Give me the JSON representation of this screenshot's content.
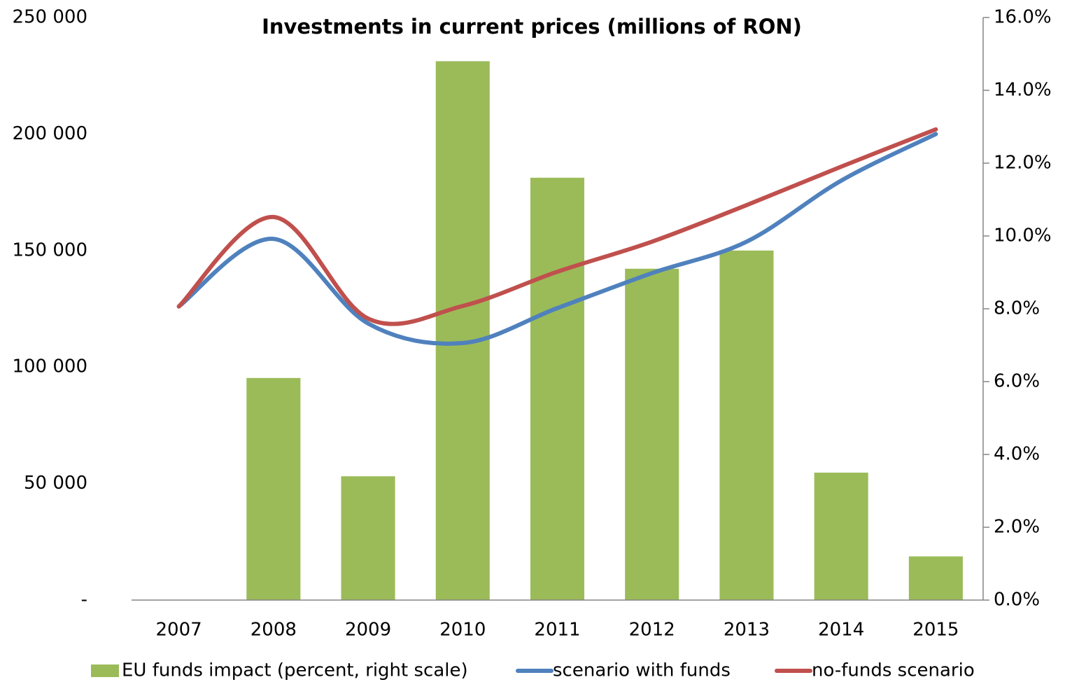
{
  "chart_data": {
    "type": "combo",
    "title": "Investments in current prices (millions of RON)",
    "categories": [
      "2007",
      "2008",
      "2009",
      "2010",
      "2011",
      "2012",
      "2013",
      "2014",
      "2015"
    ],
    "series": [
      {
        "name": "EU funds impact (percent, right scale)",
        "type": "bar",
        "axis": "y2",
        "color": "#9bbb59",
        "values": [
          0,
          6.1,
          3.4,
          14.8,
          11.6,
          9.1,
          9.6,
          3.5,
          1.2
        ]
      },
      {
        "name": "scenario with funds",
        "type": "line",
        "axis": "y",
        "color": "#4f81bd",
        "values": [
          126000,
          155000,
          118700,
          110300,
          125300,
          140300,
          153800,
          180000,
          200000
        ]
      },
      {
        "name": "no-funds scenario",
        "type": "line",
        "axis": "y",
        "color": "#c0504d",
        "values": [
          126000,
          164400,
          120800,
          126200,
          140900,
          153800,
          169500,
          186000,
          202000
        ]
      }
    ],
    "smooth": true,
    "ylim": [
      0,
      250000
    ],
    "yticks": [
      {
        "value": 0,
        "label": "-"
      },
      {
        "value": 50000,
        "label": "50 000"
      },
      {
        "value": 100000,
        "label": "100 000"
      },
      {
        "value": 150000,
        "label": "150 000"
      },
      {
        "value": 200000,
        "label": "200 000"
      },
      {
        "value": 250000,
        "label": "250 000"
      }
    ],
    "y2lim": [
      0,
      16
    ],
    "y2ticks": [
      {
        "value": 0,
        "label": "0.0%"
      },
      {
        "value": 2,
        "label": "2.0%"
      },
      {
        "value": 4,
        "label": "4.0%"
      },
      {
        "value": 6,
        "label": "6.0%"
      },
      {
        "value": 8,
        "label": "8.0%"
      },
      {
        "value": 10,
        "label": "10.0%"
      },
      {
        "value": 12,
        "label": "12.0%"
      },
      {
        "value": 14,
        "label": "14.0%"
      },
      {
        "value": 16,
        "label": "16.0%"
      }
    ],
    "legend": "bottom",
    "grid": false
  }
}
